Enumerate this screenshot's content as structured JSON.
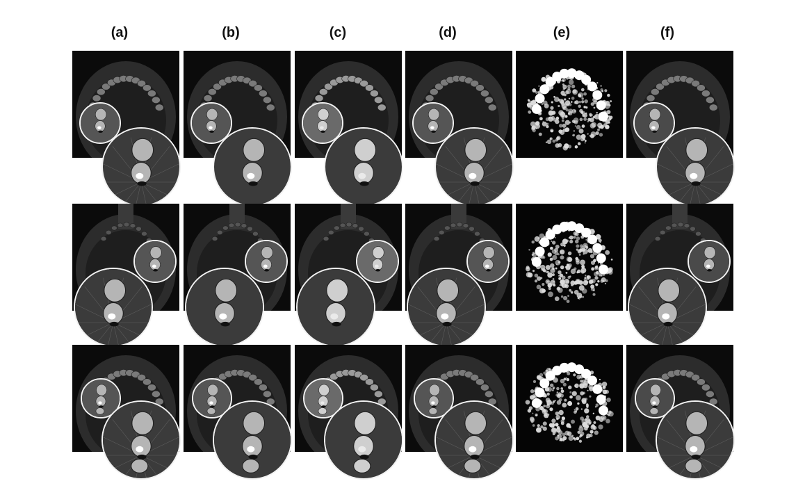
{
  "figure": {
    "column_labels": [
      "(a)",
      "(b)",
      "(c)",
      "(d)",
      "(e)",
      "(f)"
    ],
    "rows": 3,
    "panel_types": {
      "a": "ct",
      "b": "ct",
      "c": "ct",
      "d": "ct",
      "e": "threshold",
      "f": "ct"
    }
  }
}
